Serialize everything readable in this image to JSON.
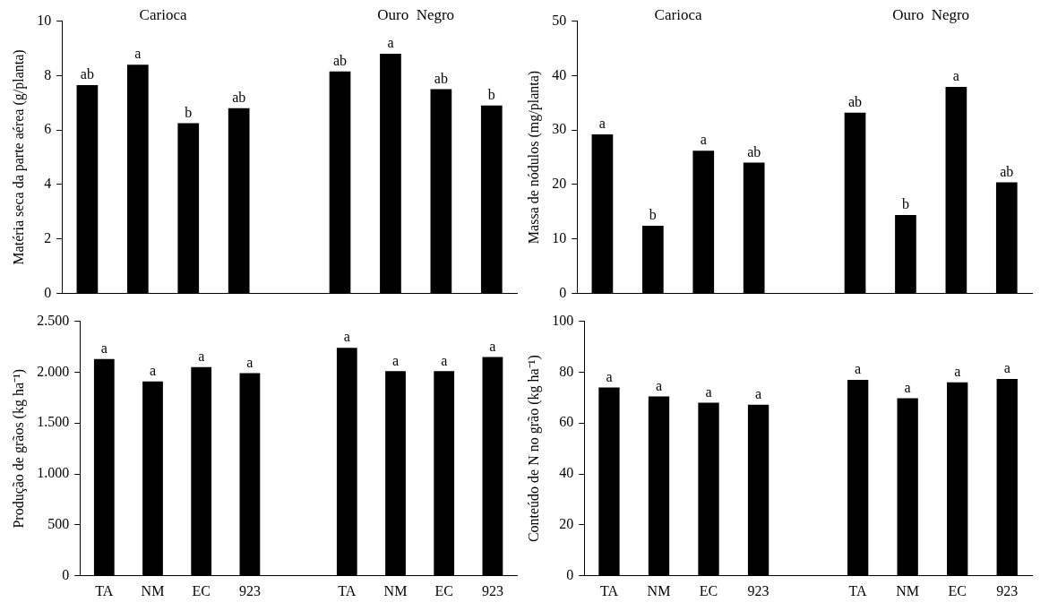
{
  "chart_data": [
    {
      "type": "bar",
      "ylabel": "Matéria seca da parte aérea (g/planta)",
      "categories": [
        null,
        null,
        null,
        null,
        null,
        null,
        null,
        null,
        null
      ],
      "tick_labels": "y",
      "values": [
        7.65,
        8.4,
        6.25,
        6.8,
        null,
        8.15,
        8.8,
        7.5,
        6.9
      ],
      "color": "#000000",
      "value_labels": [
        "ab",
        "a",
        "b",
        "ab",
        null,
        "ab",
        "a",
        "ab",
        "b"
      ],
      "ylim": [
        0,
        10
      ],
      "yticks": [
        0,
        2,
        4,
        6,
        8,
        10
      ],
      "annotations": [
        "Carioca",
        "Ouro  Negro"
      ],
      "grid": false
    },
    {
      "type": "bar",
      "ylabel": "Massa de nódulos (mg/planta)",
      "categories": [
        null,
        null,
        null,
        null,
        null,
        null,
        null,
        null,
        null
      ],
      "tick_labels": "y",
      "values": [
        29.2,
        12.4,
        26.2,
        24,
        null,
        33.2,
        14.4,
        37.9,
        20.4
      ],
      "color": "#000000",
      "value_labels": [
        "a",
        "b",
        "a",
        "ab",
        null,
        "ab",
        "b",
        "a",
        "ab"
      ],
      "ylim": [
        0,
        50
      ],
      "yticks": [
        0,
        10,
        20,
        30,
        40,
        50
      ],
      "annotations": [
        "Carioca",
        "Ouro  Negro"
      ],
      "grid": false
    },
    {
      "type": "bar",
      "ylabel": "Produção de grãos (kg ha⁻¹)",
      "categories": [
        "TA",
        "NM",
        "EC",
        "923",
        null,
        "TA",
        "NM",
        "EC",
        "923"
      ],
      "values": [
        2130,
        1910,
        2050,
        1990,
        null,
        2240,
        2010,
        2010,
        2150
      ],
      "color": "#000000",
      "value_labels": [
        "a",
        "a",
        "a",
        "a",
        null,
        "a",
        "a",
        "a",
        "a"
      ],
      "ylim": [
        0,
        2500
      ],
      "yticks": [
        0,
        500,
        {
          "value": 1000,
          "label": "1.000"
        },
        {
          "value": 1500,
          "label": "1.500"
        },
        {
          "value": 2000,
          "label": "2.000"
        },
        {
          "value": 2500,
          "label": "2.500"
        }
      ],
      "grid": false
    },
    {
      "type": "bar",
      "ylabel": "Conteúdo de N no grão (kg ha⁻¹)",
      "categories": [
        "TA",
        "NM",
        "EC",
        "923",
        null,
        "TA",
        "NM",
        "EC",
        "923"
      ],
      "values": [
        74,
        70.5,
        68,
        67.2,
        null,
        77,
        69.8,
        76,
        77.3
      ],
      "color": "#000000",
      "value_labels": [
        "a",
        "a",
        "a",
        "a",
        null,
        "a",
        "a",
        "a",
        "a"
      ],
      "ylim": [
        0,
        100
      ],
      "yticks": [
        0,
        20,
        40,
        60,
        80,
        100
      ],
      "grid": false
    }
  ]
}
